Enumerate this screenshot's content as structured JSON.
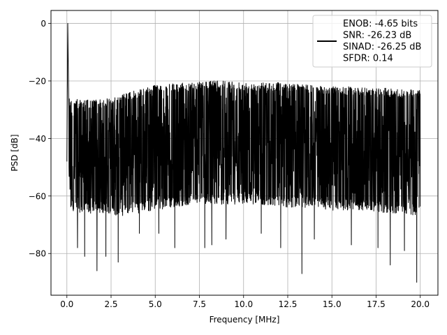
{
  "chart_data": {
    "type": "line",
    "title": "",
    "xlabel": "Frequency [MHz]",
    "ylabel": "PSD [dB]",
    "xlim": [
      -0.9,
      21.0
    ],
    "ylim": [
      -94.5,
      4.5
    ],
    "xticks": [
      0.0,
      2.5,
      5.0,
      7.5,
      10.0,
      12.5,
      15.0,
      17.5,
      20.0
    ],
    "xtick_labels": [
      "0.0",
      "2.5",
      "5.0",
      "7.5",
      "10.0",
      "12.5",
      "15.0",
      "17.5",
      "20.0"
    ],
    "yticks": [
      0,
      -20,
      -40,
      -60,
      -80
    ],
    "ytick_labels": [
      "0",
      "−20",
      "−40",
      "−60",
      "−80"
    ],
    "grid": true,
    "legend_position": "top-right",
    "legend_entries": [
      "ENOB: -4.65 bits",
      "SNR: -26.23 dB",
      "SINAD: -26.25 dB",
      "SFDR: 0.14"
    ],
    "series": [
      {
        "color": "#000000",
        "x_range": [
          0.0,
          20.0
        ],
        "fundamental": {
          "x": 0.05,
          "y": 0
        },
        "upper_envelope": {
          "x": [
            0,
            1,
            2,
            3,
            4,
            5,
            6,
            7,
            8,
            9,
            10,
            11,
            12,
            13,
            14,
            15,
            16,
            17,
            18,
            19,
            20
          ],
          "y": [
            -26,
            -26.5,
            -26.5,
            -25,
            -23,
            -21.5,
            -21,
            -20.5,
            -20,
            -20,
            -20.5,
            -20.5,
            -20.5,
            -21,
            -21.5,
            -22,
            -22,
            -22.5,
            -22.5,
            -23,
            -23
          ]
        },
        "lower_envelope": {
          "x": [
            0,
            1,
            2,
            3,
            4,
            5,
            6,
            7,
            8,
            9,
            10,
            11,
            12,
            13,
            14,
            15,
            16,
            17,
            18,
            19,
            20
          ],
          "y": [
            -65,
            -66,
            -66,
            -67,
            -66,
            -65,
            -64,
            -63,
            -63,
            -63,
            -63,
            -63,
            -64,
            -64,
            -64,
            -65,
            -65,
            -65,
            -66,
            -66,
            -67
          ]
        },
        "deep_notches": [
          {
            "x": 0.1,
            "y": -50
          },
          {
            "x": 0.6,
            "y": -78
          },
          {
            "x": 1.0,
            "y": -81
          },
          {
            "x": 1.7,
            "y": -86
          },
          {
            "x": 2.2,
            "y": -81
          },
          {
            "x": 2.9,
            "y": -83
          },
          {
            "x": 4.1,
            "y": -73
          },
          {
            "x": 5.2,
            "y": -73
          },
          {
            "x": 6.1,
            "y": -78
          },
          {
            "x": 7.8,
            "y": -78
          },
          {
            "x": 8.2,
            "y": -77
          },
          {
            "x": 9.0,
            "y": -75
          },
          {
            "x": 11.0,
            "y": -73
          },
          {
            "x": 12.1,
            "y": -78
          },
          {
            "x": 13.3,
            "y": -87
          },
          {
            "x": 14.0,
            "y": -75
          },
          {
            "x": 16.1,
            "y": -77
          },
          {
            "x": 17.6,
            "y": -78
          },
          {
            "x": 18.3,
            "y": -84
          },
          {
            "x": 19.1,
            "y": -79
          },
          {
            "x": 19.8,
            "y": -90
          }
        ]
      }
    ]
  }
}
